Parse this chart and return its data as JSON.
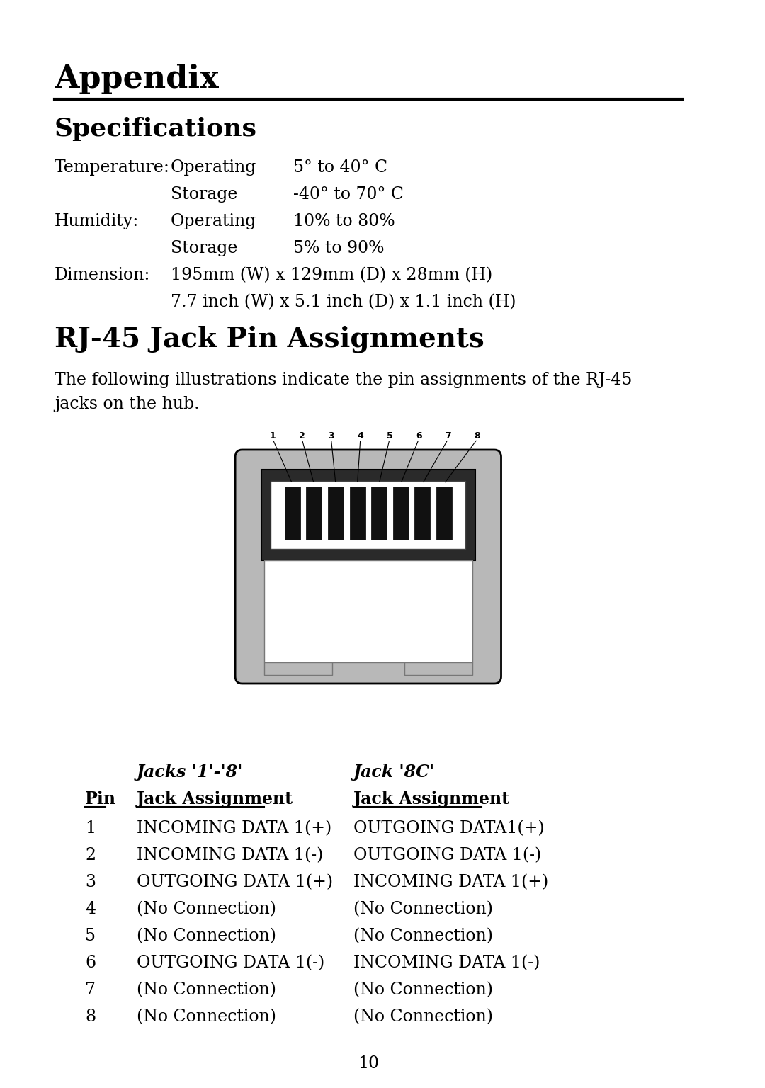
{
  "bg_color": "#ffffff",
  "title_appendix": "Appendix",
  "title_specs": "Specifications",
  "title_rj45": "RJ-45 Jack Pin Assignments",
  "page_number": "10",
  "specs": [
    {
      "label": "Temperature:",
      "col2": "Operating",
      "col3": "5° to 40° C"
    },
    {
      "label": "",
      "col2": "Storage",
      "col3": "-40° to 70° C"
    },
    {
      "label": "Humidity:",
      "col2": "Operating",
      "col3": "10% to 80%"
    },
    {
      "label": "",
      "col2": "Storage",
      "col3": "5% to 90%"
    },
    {
      "label": "Dimension:",
      "col2": "195mm (W) x 129mm (D) x 28mm (H)",
      "col3": ""
    },
    {
      "label": "",
      "col2": "7.7 inch (W) x 5.1 inch (D) x 1.1 inch (H)",
      "col3": ""
    }
  ],
  "rj45_desc": "The following illustrations indicate the pin assignments of the RJ-45\njacks on the hub.",
  "table_header1a": "Jacks '1'-'8'",
  "table_header1b": "Jack '8C'",
  "table_rows": [
    {
      "pin": "1",
      "jacks18": "INCOMING DATA 1(+)",
      "jack8c": "OUTGOING DATA1(+)"
    },
    {
      "pin": "2",
      "jacks18": "INCOMING DATA 1(-)",
      "jack8c": "OUTGOING DATA 1(-)"
    },
    {
      "pin": "3",
      "jacks18": "OUTGOING DATA 1(+)",
      "jack8c": "INCOMING DATA 1(+)"
    },
    {
      "pin": "4",
      "jacks18": "(No Connection)",
      "jack8c": "(No Connection)"
    },
    {
      "pin": "5",
      "jacks18": "(No Connection)",
      "jack8c": "(No Connection)"
    },
    {
      "pin": "6",
      "jacks18": "OUTGOING DATA 1(-)",
      "jack8c": "INCOMING DATA 1(-)"
    },
    {
      "pin": "7",
      "jacks18": "(No Connection)",
      "jack8c": "(No Connection)"
    },
    {
      "pin": "8",
      "jacks18": "(No Connection)",
      "jack8c": "(No Connection)"
    }
  ]
}
